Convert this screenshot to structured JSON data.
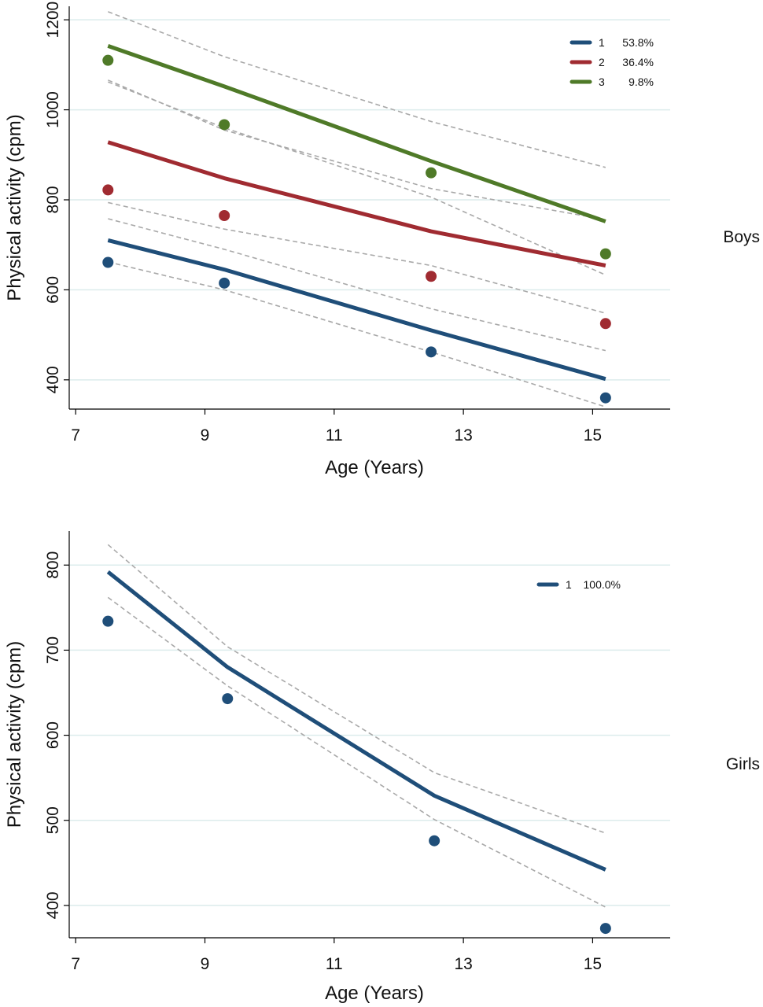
{
  "chart_data": [
    {
      "type": "line",
      "panel_label": "Boys",
      "xlabel": "Age (Years)",
      "ylabel": "Physical activity (cpm)",
      "xlim": [
        6.9,
        16.2
      ],
      "ylim": [
        335,
        1230
      ],
      "xticks": [
        7,
        9,
        11,
        13,
        15
      ],
      "yticks": [
        400,
        600,
        800,
        1000,
        1200
      ],
      "grid": true,
      "legend_position": "top-right",
      "legend": [
        {
          "group": "1",
          "share": "53.8%"
        },
        {
          "group": "2",
          "share": "36.4%"
        },
        {
          "group": "3",
          "share": "9.8%"
        }
      ],
      "series": [
        {
          "color": "#1f4e79",
          "x": [
            7.5,
            9.3,
            12.5,
            15.2
          ],
          "y": [
            710,
            645,
            510,
            402
          ],
          "observed": [
            661,
            615,
            462,
            360
          ],
          "ci_upper": [
            758,
            690,
            558,
            465
          ],
          "ci_lower": [
            662,
            600,
            462,
            340
          ]
        },
        {
          "color": "#a02b31",
          "x": [
            7.5,
            9.3,
            12.5,
            15.2
          ],
          "y": [
            928,
            848,
            730,
            654
          ],
          "observed": [
            822,
            765,
            630,
            525
          ],
          "ci_upper": [
            1062,
            960,
            806,
            633
          ],
          "ci_lower": [
            794,
            735,
            654,
            548
          ]
        },
        {
          "color": "#4f7a28",
          "x": [
            7.5,
            9.3,
            12.5,
            15.2
          ],
          "y": [
            1142,
            1052,
            886,
            752
          ],
          "observed": [
            1110,
            967,
            860,
            680
          ],
          "ci_upper": [
            1218,
            1118,
            974,
            872
          ],
          "ci_lower": [
            1066,
            955,
            825,
            756
          ]
        }
      ]
    },
    {
      "type": "line",
      "panel_label": "Girls",
      "xlabel": "Age (Years)",
      "ylabel": "Physical activity (cpm)",
      "xlim": [
        6.9,
        16.2
      ],
      "ylim": [
        362,
        840
      ],
      "xticks": [
        7,
        9,
        11,
        13,
        15
      ],
      "yticks": [
        400,
        500,
        600,
        700,
        800
      ],
      "grid": true,
      "legend_position": "top-right",
      "legend": [
        {
          "group": "1",
          "share": "100.0%"
        }
      ],
      "series": [
        {
          "color": "#1f4e79",
          "x": [
            7.5,
            9.35,
            12.55,
            15.2
          ],
          "y": [
            792,
            680,
            529,
            442
          ],
          "observed": [
            734,
            643,
            476,
            373
          ],
          "ci_upper": [
            824,
            704,
            556,
            485
          ],
          "ci_lower": [
            762,
            658,
            501,
            398
          ]
        }
      ]
    }
  ]
}
